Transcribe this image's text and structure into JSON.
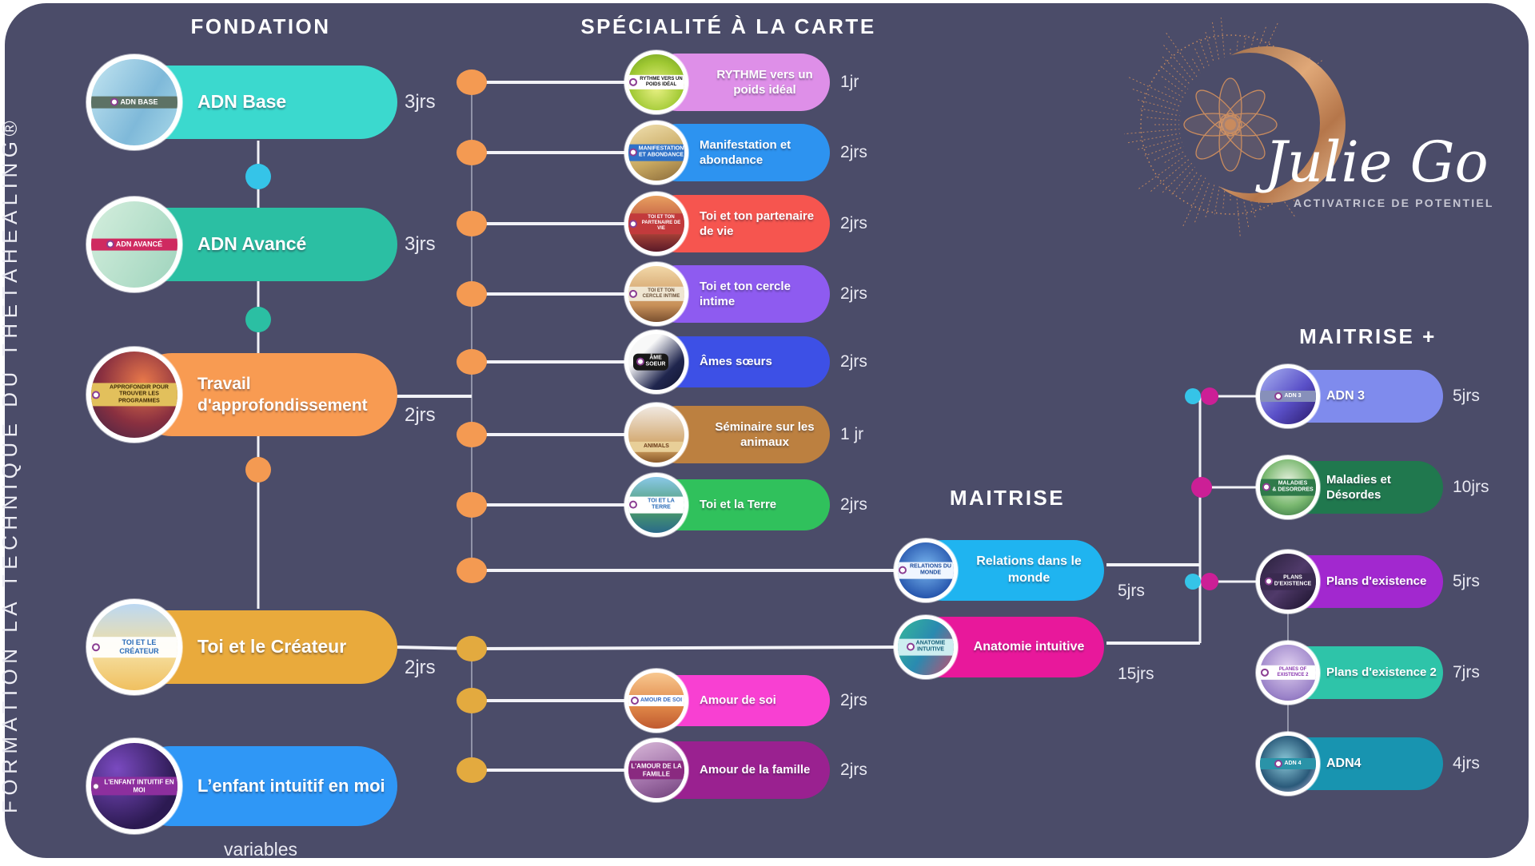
{
  "sidebar": {
    "text": "FORMATION LA TECHNIQUE DU THETAHEALING®"
  },
  "logo": {
    "name": "Julie Go",
    "tagline": "ACTIVATRICE DE POTENTIEL"
  },
  "palette": {
    "background": "#4B4C69",
    "line_white": "#F2F2F7",
    "line_gray": "#9193A8",
    "dot_orange": "#F49A52",
    "dot_gold": "#E3AA3F",
    "dot_cyan": "#35C4E8",
    "dot_teal": "#2BBFA3",
    "dot_magenta": "#CC1F96",
    "copper": "#C98B5E"
  },
  "columns": {
    "fondation": {
      "header": "FONDATION",
      "items": [
        {
          "id": "adn-base",
          "label": "ADN Base",
          "days": "3jrs",
          "color": "#3BD9CE",
          "badge_text": "ADN BASE"
        },
        {
          "id": "adn-avance",
          "label": "ADN Avancé",
          "days": "3jrs",
          "color": "#2BBFA3",
          "badge_text": "ADN AVANCÉ"
        },
        {
          "id": "travail",
          "label": "Travail d'approfondissement",
          "days": "2jrs",
          "color": "#F89B52",
          "badge_text": "APPROFONDIR POUR TROUVER LES PROGRAMMES"
        },
        {
          "id": "createur",
          "label": "Toi et le Créateur",
          "days": "2jrs",
          "color": "#E9AA3C",
          "badge_text": "TOI ET LE CRÉATEUR"
        },
        {
          "id": "enfant",
          "label": "L’enfant intuitif en moi",
          "days": "variables",
          "color": "#2F97F6",
          "badge_text": "L'ENFANT INTUITIF EN MOI"
        }
      ]
    },
    "specialite": {
      "header": "SPÉCIALITÉ À LA CARTE",
      "items": [
        {
          "id": "rythme",
          "label": "RYTHME vers un poids idéal",
          "days": "1jr",
          "color": "#DE8FE8",
          "badge_text": "RYTHME VERS UN POIDS IDÉAL"
        },
        {
          "id": "manifestation",
          "label": "Manifestation et abondance",
          "days": "2jrs",
          "color": "#2D93F0",
          "badge_text": "MANIFESTATION\nET ABONDANCE"
        },
        {
          "id": "partenaire",
          "label": "Toi et ton partenaire de vie",
          "days": "2jrs",
          "color": "#F6554F",
          "badge_text": "TOI ET TON PARTENAIRE DE VIE"
        },
        {
          "id": "cercle-intime",
          "label": "Toi et ton cercle intime",
          "days": "2jrs",
          "color": "#8E5BF0",
          "badge_text": "TOI ET TON CERCLE INTIME"
        },
        {
          "id": "ames-soeurs",
          "label": "Âmes sœurs",
          "days": "2jrs",
          "color": "#3D50E6",
          "badge_text": "ÂME\nSOEUR"
        },
        {
          "id": "animaux",
          "label": "Séminaire sur les animaux",
          "days": "1 jr",
          "color": "#BC8040",
          "badge_text": "ANIMALS"
        },
        {
          "id": "terre",
          "label": "Toi  et la Terre",
          "days": "2jrs",
          "color": "#30C15C",
          "badge_text": "TOI ET LA TERRE"
        },
        {
          "id": "amour-soi",
          "label": "Amour de soi",
          "days": "2jrs",
          "color": "#F840D2",
          "badge_text": "AMOUR DE SOI"
        },
        {
          "id": "amour-famille",
          "label": "Amour de la famille",
          "days": "2jrs",
          "color": "#9A2190",
          "badge_text": "L'AMOUR DE LA FAMILLE"
        }
      ]
    },
    "maitrise": {
      "header": "MAITRISE",
      "items": [
        {
          "id": "relations",
          "label": "Relations dans le monde",
          "days": "5jrs",
          "color": "#1FB4F0",
          "badge_text": "RELATIONS DU MONDE"
        },
        {
          "id": "anatomie",
          "label": "Anatomie intuitive",
          "days": "15jrs",
          "color": "#E8189B",
          "badge_text": "ANATOMIE\nINTUITIVE"
        }
      ]
    },
    "maitrise_plus": {
      "header": "MAITRISE  +",
      "items": [
        {
          "id": "adn3",
          "label": "ADN 3",
          "days": "5jrs",
          "color": "#7F8BED",
          "badge_text": "ADN 3"
        },
        {
          "id": "maladies",
          "label": "Maladies et Désordes",
          "days": "10jrs",
          "color": "#20784E",
          "badge_text": "MALADIES\n& DESORDRES"
        },
        {
          "id": "plans",
          "label": "Plans d'existence",
          "days": "5jrs",
          "color": "#A228CF",
          "badge_text": "PLANS\nD'EXISTENCE"
        },
        {
          "id": "plans2",
          "label": "Plans d'existence 2",
          "days": "7jrs",
          "color": "#2EC4A9",
          "badge_text": "PLANES OF EXISTENCE 2"
        },
        {
          "id": "adn4",
          "label": "ADN4",
          "days": "4jrs",
          "color": "#1894B0",
          "badge_text": "ADN 4"
        }
      ]
    }
  }
}
